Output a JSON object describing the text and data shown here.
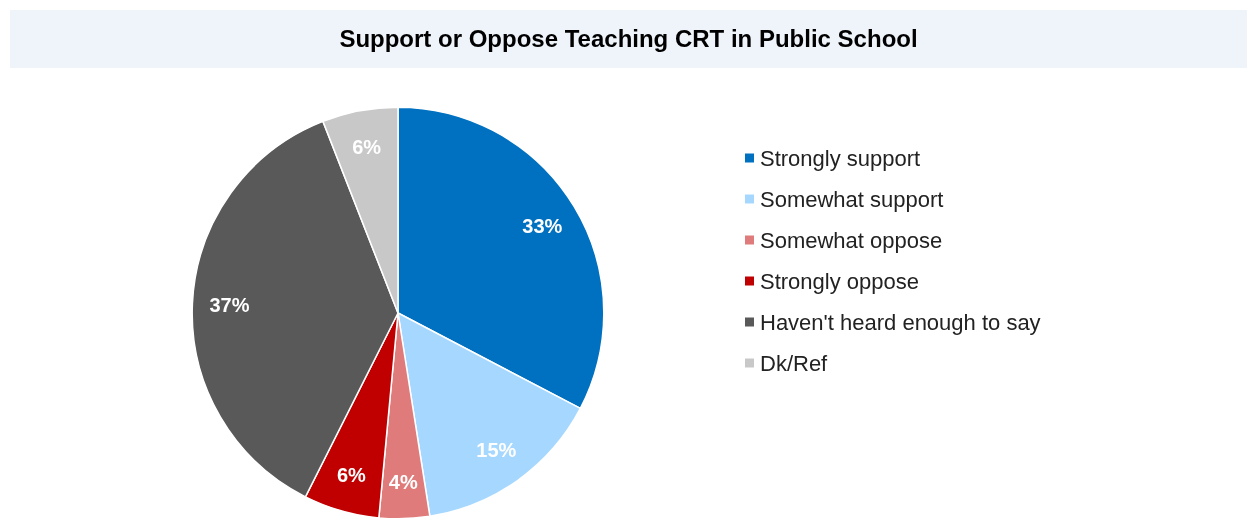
{
  "chart_data": {
    "type": "pie",
    "title": "Support or Oppose Teaching CRT in Public School",
    "categories": [
      "Strongly support",
      "Somewhat support",
      "Somewhat oppose",
      "Strongly oppose",
      "Haven't heard enough to say",
      "Dk/Ref"
    ],
    "values": [
      33,
      15,
      4,
      6,
      37,
      6
    ],
    "value_labels": [
      "33%",
      "15%",
      "4%",
      "6%",
      "37%",
      "6%"
    ],
    "colors": [
      "#0070c0",
      "#a6d8ff",
      "#e07b7b",
      "#c00000",
      "#595959",
      "#c8c8c8"
    ],
    "legend": "right"
  }
}
